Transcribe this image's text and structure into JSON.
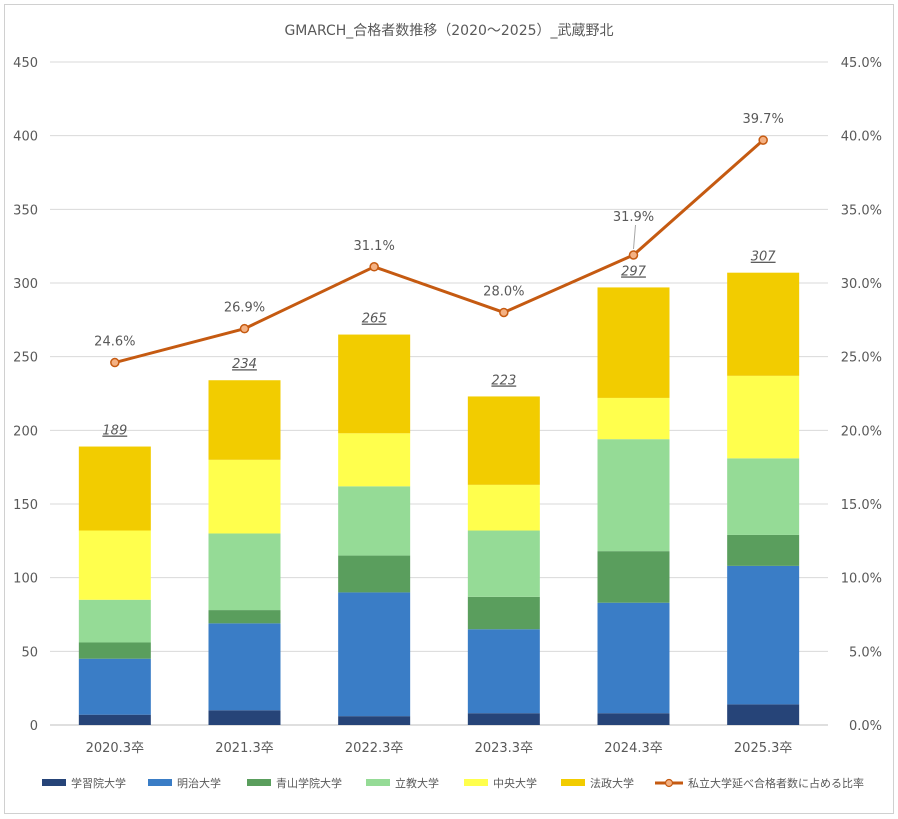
{
  "chart_data": {
    "type": "bar",
    "stacked": true,
    "title": "GMARCH_合格者数推移（2020～2025）_武蔵野北",
    "categories": [
      "2020.3卒",
      "2021.3卒",
      "2022.3卒",
      "2023.3卒",
      "2024.3卒",
      "2025.3卒"
    ],
    "series": [
      {
        "name": "学習院大学",
        "color": "#264478",
        "values": [
          7,
          10,
          6,
          8,
          8,
          14
        ]
      },
      {
        "name": "明治大学",
        "color": "#3A7DC6",
        "values": [
          38,
          59,
          84,
          57,
          75,
          94
        ]
      },
      {
        "name": "青山学院大学",
        "color": "#5A9E5D",
        "values": [
          11,
          9,
          25,
          22,
          35,
          21
        ]
      },
      {
        "name": "立教大学",
        "color": "#95DB96",
        "values": [
          29,
          52,
          47,
          45,
          76,
          52
        ]
      },
      {
        "name": "中央大学",
        "color": "#FFFF4D",
        "values": [
          47,
          50,
          36,
          31,
          28,
          56
        ]
      },
      {
        "name": "法政大学",
        "color": "#F2CC00",
        "values": [
          57,
          54,
          67,
          60,
          75,
          70
        ]
      }
    ],
    "totals": [
      "189",
      "234",
      "265",
      "223",
      "297",
      "307"
    ],
    "line_series": {
      "name": "私立大学延べ合格者数に占める比率",
      "color": "#C55A11",
      "values": [
        24.6,
        26.9,
        31.1,
        28.0,
        31.9,
        39.7
      ],
      "labels": [
        "24.6%",
        "26.9%",
        "31.1%",
        "28.0%",
        "31.9%",
        "39.7%"
      ]
    },
    "ylim": [
      0,
      450
    ],
    "y_ticks": [
      "0",
      "50",
      "100",
      "150",
      "200",
      "250",
      "300",
      "350",
      "400",
      "450"
    ],
    "y2lim": [
      0,
      45
    ],
    "y2_ticks": [
      "0.0%",
      "5.0%",
      "10.0%",
      "15.0%",
      "20.0%",
      "25.0%",
      "30.0%",
      "35.0%",
      "40.0%",
      "45.0%"
    ],
    "grid": true,
    "legend_position": "bottom"
  }
}
